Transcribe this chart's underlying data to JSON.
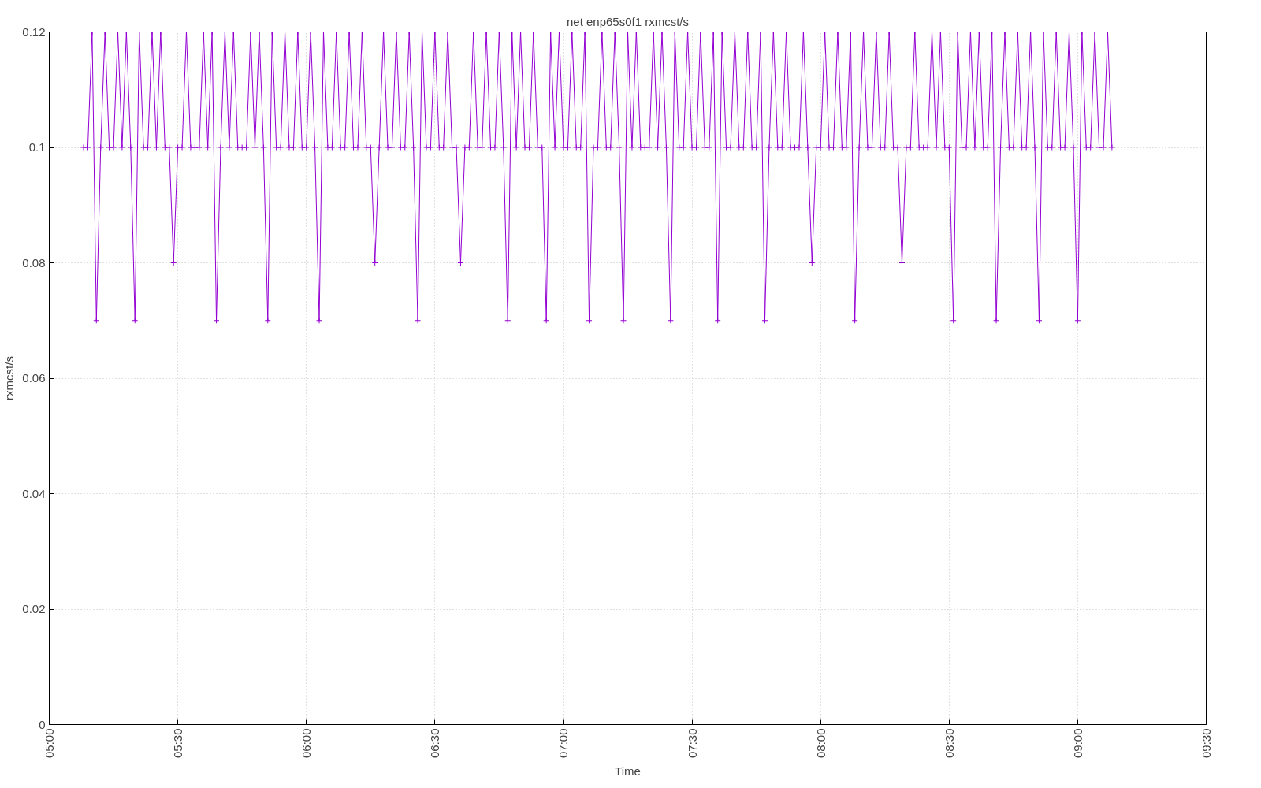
{
  "chart_data": {
    "type": "line",
    "title": "net enp65s0f1 rxmcst/s",
    "xlabel": "Time",
    "ylabel": "rxmcst/s",
    "xlim": [
      5,
      9.5
    ],
    "xticks": [
      {
        "value": 5,
        "label": "05:00"
      },
      {
        "value": 5.5,
        "label": "05:30"
      },
      {
        "value": 6,
        "label": "06:00"
      },
      {
        "value": 6.5,
        "label": "06:30"
      },
      {
        "value": 7,
        "label": "07:00"
      },
      {
        "value": 7.5,
        "label": "07:30"
      },
      {
        "value": 8,
        "label": "08:00"
      },
      {
        "value": 8.5,
        "label": "08:30"
      },
      {
        "value": 9,
        "label": "09:00"
      },
      {
        "value": 9.5,
        "label": "09:30"
      }
    ],
    "ylim": [
      0,
      0.12
    ],
    "yticks": [
      0,
      0.02,
      0.04,
      0.06,
      0.08,
      0.1,
      0.12
    ],
    "grid": true,
    "marker": "cross",
    "line_style": "solid",
    "x": [
      5.1333,
      5.15,
      5.1667,
      5.1833,
      5.2,
      5.2167,
      5.2333,
      5.25,
      5.2667,
      5.2833,
      5.3,
      5.3167,
      5.3333,
      5.35,
      5.3667,
      5.3833,
      5.4,
      5.4167,
      5.4333,
      5.45,
      5.4667,
      5.4833,
      5.5,
      5.5167,
      5.5333,
      5.55,
      5.5667,
      5.5833,
      5.6,
      5.6167,
      5.6333,
      5.65,
      5.6667,
      5.6833,
      5.7,
      5.7167,
      5.7333,
      5.75,
      5.7667,
      5.7833,
      5.8,
      5.8167,
      5.8333,
      5.85,
      5.8667,
      5.8833,
      5.9,
      5.9167,
      5.9333,
      5.95,
      5.9667,
      5.9833,
      6,
      6.0167,
      6.0333,
      6.05,
      6.0667,
      6.0833,
      6.1,
      6.1167,
      6.1333,
      6.15,
      6.1667,
      6.1833,
      6.2,
      6.2167,
      6.2333,
      6.25,
      6.2667,
      6.2833,
      6.3,
      6.3167,
      6.3333,
      6.35,
      6.3667,
      6.3833,
      6.4,
      6.4167,
      6.4333,
      6.45,
      6.4667,
      6.4833,
      6.5,
      6.5167,
      6.5333,
      6.55,
      6.5667,
      6.5833,
      6.6,
      6.6167,
      6.6333,
      6.65,
      6.6667,
      6.6833,
      6.7,
      6.7167,
      6.7333,
      6.75,
      6.7667,
      6.7833,
      6.8,
      6.8167,
      6.8333,
      6.85,
      6.8667,
      6.8833,
      6.9,
      6.9167,
      6.9333,
      6.95,
      6.9667,
      6.9833,
      7,
      7.0167,
      7.0333,
      7.05,
      7.0667,
      7.0833,
      7.1,
      7.1167,
      7.1333,
      7.15,
      7.1667,
      7.1833,
      7.2,
      7.2167,
      7.2333,
      7.25,
      7.2667,
      7.2833,
      7.3,
      7.3167,
      7.3333,
      7.35,
      7.3667,
      7.3833,
      7.4,
      7.4167,
      7.4333,
      7.45,
      7.4667,
      7.4833,
      7.5,
      7.5167,
      7.5333,
      7.55,
      7.5667,
      7.5833,
      7.6,
      7.6167,
      7.6333,
      7.65,
      7.6667,
      7.6833,
      7.7,
      7.7167,
      7.7333,
      7.75,
      7.7667,
      7.7833,
      7.8,
      7.8167,
      7.8333,
      7.85,
      7.8667,
      7.8833,
      7.9,
      7.9167,
      7.9333,
      7.95,
      7.9667,
      7.9833,
      8,
      8.0167,
      8.0333,
      8.05,
      8.0667,
      8.0833,
      8.1,
      8.1167,
      8.1333,
      8.15,
      8.1667,
      8.1833,
      8.2,
      8.2167,
      8.2333,
      8.25,
      8.2667,
      8.2833,
      8.3,
      8.3167,
      8.3333,
      8.35,
      8.3667,
      8.3833,
      8.4,
      8.4167,
      8.4333,
      8.45,
      8.4667,
      8.4833,
      8.5,
      8.5167,
      8.5333,
      8.55,
      8.5667,
      8.5833,
      8.6,
      8.6167,
      8.6333,
      8.65,
      8.6667,
      8.6833,
      8.7,
      8.7167,
      8.7333,
      8.75,
      8.7667,
      8.7833,
      8.8,
      8.8167,
      8.8333,
      8.85,
      8.8667,
      8.8833,
      8.9,
      8.9167,
      8.9333,
      8.95,
      8.9667,
      8.9833,
      9,
      9.0167,
      9.0333,
      9.05,
      9.0667,
      9.0833,
      9.1,
      9.1167,
      9.1333
    ],
    "series": [
      {
        "color": "#9400d3",
        "values": [
          0.1,
          0.1,
          0.12,
          0.07,
          0.1,
          0.12,
          0.1,
          0.1,
          0.12,
          0.1,
          0.12,
          0.1,
          0.07,
          0.12,
          0.1,
          0.1,
          0.12,
          0.1,
          0.12,
          0.1,
          0.1,
          0.08,
          0.1,
          0.1,
          0.12,
          0.1,
          0.1,
          0.1,
          0.12,
          0.1,
          0.12,
          0.07,
          0.1,
          0.12,
          0.1,
          0.12,
          0.1,
          0.1,
          0.1,
          0.12,
          0.1,
          0.12,
          0.1,
          0.07,
          0.12,
          0.1,
          0.1,
          0.12,
          0.1,
          0.1,
          0.12,
          0.1,
          0.1,
          0.12,
          0.1,
          0.07,
          0.12,
          0.1,
          0.1,
          0.12,
          0.1,
          0.1,
          0.12,
          0.1,
          0.1,
          0.12,
          0.1,
          0.1,
          0.08,
          0.1,
          0.12,
          0.1,
          0.1,
          0.12,
          0.1,
          0.1,
          0.12,
          0.1,
          0.07,
          0.12,
          0.1,
          0.1,
          0.12,
          0.1,
          0.1,
          0.12,
          0.1,
          0.1,
          0.08,
          0.1,
          0.1,
          0.12,
          0.1,
          0.1,
          0.12,
          0.1,
          0.1,
          0.12,
          0.1,
          0.07,
          0.12,
          0.1,
          0.12,
          0.1,
          0.1,
          0.12,
          0.1,
          0.1,
          0.07,
          0.12,
          0.1,
          0.12,
          0.1,
          0.1,
          0.12,
          0.1,
          0.1,
          0.12,
          0.07,
          0.1,
          0.1,
          0.12,
          0.1,
          0.1,
          0.12,
          0.1,
          0.07,
          0.12,
          0.1,
          0.12,
          0.1,
          0.1,
          0.1,
          0.12,
          0.1,
          0.12,
          0.1,
          0.07,
          0.12,
          0.1,
          0.1,
          0.12,
          0.1,
          0.1,
          0.12,
          0.1,
          0.1,
          0.12,
          0.07,
          0.12,
          0.1,
          0.1,
          0.12,
          0.1,
          0.1,
          0.12,
          0.1,
          0.1,
          0.12,
          0.07,
          0.1,
          0.12,
          0.1,
          0.1,
          0.12,
          0.1,
          0.1,
          0.1,
          0.12,
          0.1,
          0.08,
          0.1,
          0.1,
          0.12,
          0.1,
          0.1,
          0.12,
          0.1,
          0.1,
          0.12,
          0.07,
          0.1,
          0.12,
          0.1,
          0.1,
          0.12,
          0.1,
          0.1,
          0.12,
          0.1,
          0.1,
          0.08,
          0.1,
          0.1,
          0.12,
          0.1,
          0.1,
          0.1,
          0.12,
          0.1,
          0.12,
          0.1,
          0.1,
          0.07,
          0.12,
          0.1,
          0.1,
          0.12,
          0.1,
          0.12,
          0.1,
          0.1,
          0.12,
          0.07,
          0.1,
          0.12,
          0.1,
          0.1,
          0.12,
          0.1,
          0.1,
          0.12,
          0.1,
          0.07,
          0.12,
          0.1,
          0.1,
          0.12,
          0.1,
          0.1,
          0.12,
          0.1,
          0.07,
          0.12,
          0.1,
          0.1,
          0.12,
          0.1,
          0.1,
          0.12,
          0.1
        ]
      }
    ]
  }
}
